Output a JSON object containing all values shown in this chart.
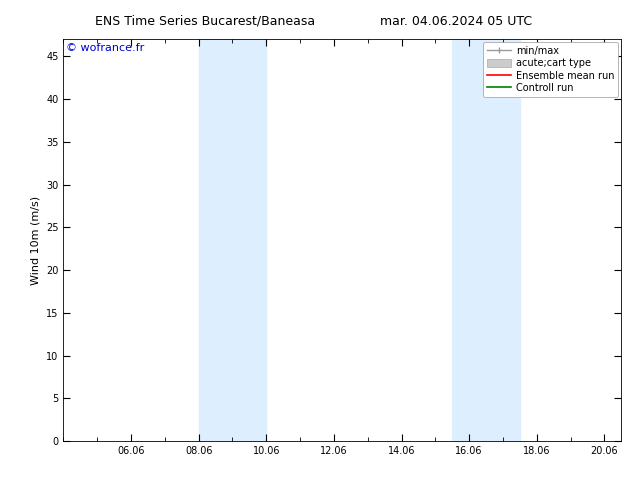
{
  "title_left": "ENS Time Series Bucarest/Baneasa",
  "title_right": "mar. 04.06.2024 05 UTC",
  "ylabel": "Wind 10m (m/s)",
  "watermark": "© wofrance.fr",
  "watermark_color": "#0000cc",
  "xmin": 4.0,
  "xmax": 20.5,
  "ymin": 0,
  "ymax": 47,
  "yticks": [
    0,
    5,
    10,
    15,
    20,
    25,
    30,
    35,
    40,
    45
  ],
  "xtick_labels": [
    "06.06",
    "08.06",
    "10.06",
    "12.06",
    "14.06",
    "16.06",
    "18.06",
    "20.06"
  ],
  "xtick_positions": [
    6,
    8,
    10,
    12,
    14,
    16,
    18,
    20
  ],
  "shaded_bands": [
    {
      "xmin": 8.0,
      "xmax": 10.0
    },
    {
      "xmin": 15.5,
      "xmax": 17.5
    }
  ],
  "shade_color": "#ddeeff",
  "shade_alpha": 1.0,
  "bg_color": "#ffffff",
  "plot_bg_color": "#ffffff",
  "title_fontsize": 9,
  "tick_fontsize": 7,
  "ylabel_fontsize": 8,
  "watermark_fontsize": 8,
  "legend_fontsize": 7
}
